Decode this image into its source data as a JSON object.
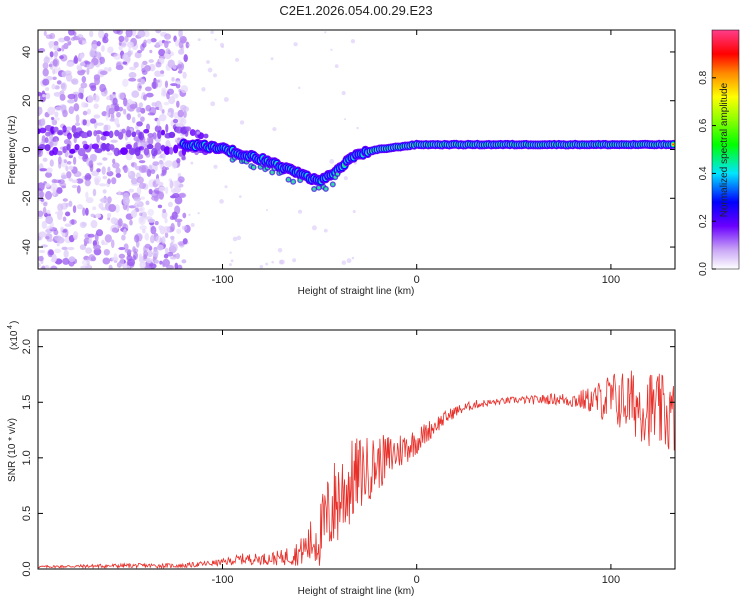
{
  "title": "C2E1.2026.054.00.29.E23",
  "colors": {
    "snr_line": "#e8302a",
    "axis": "#000000"
  },
  "chart_data": [
    {
      "type": "heatmap",
      "title": "C2E1.2026.054.00.29.E23",
      "xlabel": "Height of straight line (km)",
      "ylabel": "Frequency (Hz)",
      "xlim": [
        -195,
        133
      ],
      "ylim": [
        -49,
        49
      ],
      "x_ticks": [
        -100,
        0,
        100
      ],
      "x_tick_labels": [
        "-100",
        "0",
        "100"
      ],
      "y_ticks": [
        -40,
        -20,
        0,
        20,
        40
      ],
      "y_tick_labels": [
        "-40",
        "-20",
        "0",
        "20",
        "40"
      ],
      "noise_region_x": [
        -195,
        -118
      ],
      "trace": {
        "x": [
          -120,
          -110,
          -100,
          -90,
          -80,
          -70,
          -60,
          -50,
          -45,
          -40,
          -35,
          -30,
          -20,
          -10,
          0,
          20,
          50,
          80,
          110,
          133
        ],
        "frequency": [
          2,
          1.5,
          0.5,
          -2,
          -4,
          -7,
          -10,
          -13,
          -11,
          -8,
          -4,
          -2,
          0,
          1,
          2,
          2,
          2,
          2,
          2,
          2
        ]
      },
      "colorbar": {
        "label": "Normalized spectral amplitude",
        "range": [
          0,
          1
        ],
        "ticks": [
          0.0,
          0.2,
          0.4,
          0.6,
          0.8
        ],
        "tick_labels": [
          "0.0",
          "0.2",
          "0.4",
          "0.6",
          "0.8"
        ]
      }
    },
    {
      "type": "line",
      "xlabel": "Height of straight line (km)",
      "ylabel": "SNR (10 * v/v)",
      "y_scale_label": "(x10",
      "y_scale_exponent": "4",
      "xlim": [
        -195,
        133
      ],
      "ylim": [
        0,
        2.15
      ],
      "x_ticks": [
        -100,
        0,
        100
      ],
      "x_tick_labels": [
        "-100",
        "0",
        "100"
      ],
      "y_ticks": [
        0.0,
        0.5,
        1.0,
        1.5,
        2.0
      ],
      "y_tick_labels": [
        "0.0",
        "0.5",
        "1.0",
        "1.5",
        "2.0"
      ],
      "series": [
        {
          "name": "SNR",
          "x": [
            -195,
            -150,
            -120,
            -100,
            -90,
            -80,
            -70,
            -60,
            -50,
            -45,
            -40,
            -35,
            -30,
            -20,
            -10,
            0,
            10,
            20,
            30,
            40,
            50,
            60,
            70,
            80,
            90,
            100,
            110,
            120,
            133
          ],
          "values": [
            0.02,
            0.03,
            0.03,
            0.06,
            0.09,
            0.09,
            0.1,
            0.15,
            0.3,
            0.5,
            0.65,
            0.75,
            0.85,
            0.95,
            1.05,
            1.15,
            1.3,
            1.42,
            1.48,
            1.5,
            1.52,
            1.52,
            1.53,
            1.52,
            1.52,
            1.53,
            1.5,
            1.45,
            1.35
          ],
          "spread": [
            0.01,
            0.02,
            0.02,
            0.03,
            0.05,
            0.05,
            0.07,
            0.12,
            0.3,
            0.4,
            0.45,
            0.4,
            0.35,
            0.25,
            0.18,
            0.12,
            0.08,
            0.05,
            0.04,
            0.03,
            0.03,
            0.04,
            0.05,
            0.07,
            0.12,
            0.25,
            0.3,
            0.35,
            0.35
          ]
        }
      ]
    }
  ]
}
